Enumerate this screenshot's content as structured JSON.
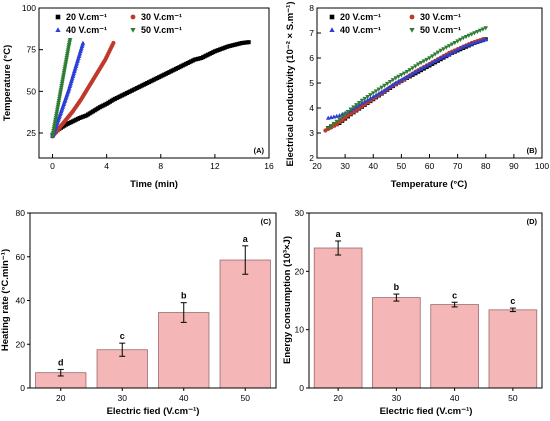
{
  "chart_data": [
    {
      "id": "A",
      "type": "scatter",
      "panel_label": "(A)",
      "xlabel": "Time (min)",
      "ylabel": "Temperature (°C)",
      "xlim": [
        -1,
        16
      ],
      "ylim": [
        10,
        100
      ],
      "xticks": [
        "0",
        "4",
        "8",
        "12",
        "16"
      ],
      "yticks": [
        "25",
        "50",
        "75",
        "100"
      ],
      "legend_position": "top-left",
      "series": [
        {
          "name": "20 V.cm⁻¹",
          "marker": "square",
          "color": "#000000",
          "x": [
            0,
            0.5,
            1,
            1.5,
            2,
            2.5,
            3,
            3.5,
            4,
            4.5,
            5,
            5.5,
            6,
            6.5,
            7,
            7.5,
            8,
            8.5,
            9,
            9.5,
            10,
            10.5,
            11,
            11.5,
            12,
            12.5,
            13,
            13.5,
            14,
            14.5
          ],
          "y": [
            24,
            27.5,
            30,
            32,
            34,
            35.5,
            38,
            40.5,
            42.5,
            45,
            47,
            49,
            51,
            53,
            55,
            57,
            59,
            61,
            63,
            65,
            67,
            69,
            70,
            72,
            74,
            75.5,
            77,
            78,
            79,
            79.5
          ]
        },
        {
          "name": "30 V.cm⁻¹",
          "marker": "circle",
          "color": "#c0392b",
          "x": [
            0,
            0.3,
            0.6,
            0.9,
            1.2,
            1.5,
            1.8,
            2.1,
            2.4,
            2.7,
            3.0,
            3.3,
            3.6,
            3.9,
            4.2,
            4.5
          ],
          "y": [
            23,
            26,
            29,
            32,
            35,
            38,
            41.5,
            45,
            49,
            53,
            57,
            61,
            65,
            69,
            74,
            79
          ]
        },
        {
          "name": "40 V.cm⁻¹",
          "marker": "triangle-up",
          "color": "#2a3fd6",
          "x": [
            0,
            0.15,
            0.3,
            0.45,
            0.6,
            0.75,
            0.9,
            1.05,
            1.2,
            1.35,
            1.5,
            1.65,
            1.8,
            1.95,
            2.1,
            2.25
          ],
          "y": [
            23,
            26.5,
            30,
            33.5,
            37,
            40.5,
            44,
            47.5,
            51,
            55,
            59,
            63,
            67,
            71,
            75,
            79
          ]
        },
        {
          "name": "50 V.cm⁻¹",
          "marker": "triangle-down",
          "color": "#2e7d32",
          "x": [
            0,
            0.1,
            0.2,
            0.3,
            0.4,
            0.5,
            0.6,
            0.7,
            0.8,
            0.9,
            1.0,
            1.1,
            1.2,
            1.3
          ],
          "y": [
            23,
            27.5,
            32,
            36.5,
            41,
            45.5,
            50,
            54.5,
            59,
            63.5,
            68,
            72.5,
            77,
            81
          ]
        }
      ]
    },
    {
      "id": "B",
      "type": "scatter",
      "panel_label": "(B)",
      "xlabel": "Temperature (°C)",
      "ylabel": "Electrical conductivity (10⁻² × S.m⁻¹)",
      "xlim": [
        20,
        100
      ],
      "ylim": [
        2,
        8
      ],
      "xticks": [
        "20",
        "30",
        "40",
        "50",
        "60",
        "70",
        "80",
        "90",
        "100"
      ],
      "yticks": [
        "2",
        "3",
        "4",
        "5",
        "6",
        "7",
        "8"
      ],
      "legend_position": "top",
      "series": [
        {
          "name": "20 V.cm⁻¹",
          "marker": "square",
          "color": "#000000",
          "x": [
            24,
            28,
            32,
            36,
            40,
            44,
            48,
            52,
            56,
            60,
            64,
            68,
            72,
            76,
            80
          ],
          "y": [
            3.2,
            3.4,
            3.75,
            4.05,
            4.35,
            4.65,
            4.95,
            5.2,
            5.45,
            5.7,
            5.95,
            6.2,
            6.4,
            6.6,
            6.75
          ]
        },
        {
          "name": "30 V.cm⁻¹",
          "marker": "circle",
          "color": "#c0392b",
          "x": [
            23,
            27,
            31,
            35,
            39,
            43,
            47,
            51,
            55,
            59,
            63,
            67,
            71,
            75,
            79
          ],
          "y": [
            3.1,
            3.35,
            3.7,
            4.0,
            4.3,
            4.6,
            4.9,
            5.15,
            5.45,
            5.7,
            5.95,
            6.2,
            6.4,
            6.6,
            6.75
          ]
        },
        {
          "name": "40 V.cm⁻¹",
          "marker": "triangle-up",
          "color": "#2a3fd6",
          "x": [
            24,
            28,
            32,
            36,
            40,
            44,
            48,
            52,
            56,
            60,
            64,
            68,
            72,
            76,
            80
          ],
          "y": [
            3.6,
            3.7,
            3.9,
            4.2,
            4.45,
            4.7,
            5.0,
            5.25,
            5.5,
            5.75,
            6.0,
            6.2,
            6.45,
            6.6,
            6.75
          ]
        },
        {
          "name": "50 V.cm⁻¹",
          "marker": "triangle-down",
          "color": "#2e7d32",
          "x": [
            24,
            28,
            32,
            36,
            40,
            44,
            48,
            52,
            56,
            60,
            64,
            68,
            72,
            76,
            80
          ],
          "y": [
            3.2,
            3.55,
            3.95,
            4.3,
            4.6,
            4.9,
            5.2,
            5.45,
            5.75,
            6.0,
            6.3,
            6.55,
            6.8,
            7.0,
            7.2
          ]
        }
      ]
    },
    {
      "id": "C",
      "type": "bar",
      "panel_label": "(C)",
      "xlabel": "Electric fied (V.cm⁻¹)",
      "ylabel": "Heating rate (°C.min⁻¹)",
      "categories": [
        "20",
        "30",
        "40",
        "50"
      ],
      "values": [
        7,
        17.5,
        34.5,
        58.5
      ],
      "errors": [
        1.5,
        3,
        4.5,
        6.5
      ],
      "significance": [
        "d",
        "c",
        "b",
        "a"
      ],
      "ylim": [
        0,
        80
      ],
      "yticks": [
        "0",
        "20",
        "40",
        "60",
        "80"
      ],
      "bar_color": "#f4b6b6"
    },
    {
      "id": "D",
      "type": "bar",
      "panel_label": "(D)",
      "xlabel": "Electric fied (V.cm⁻¹)",
      "ylabel": "Energy consumption (10³×J)",
      "categories": [
        "20",
        "30",
        "40",
        "50"
      ],
      "values": [
        24,
        15.5,
        14.3,
        13.4
      ],
      "errors": [
        1.2,
        0.6,
        0.4,
        0.3
      ],
      "significance": [
        "a",
        "b",
        "c",
        "c"
      ],
      "ylim": [
        0,
        30
      ],
      "yticks": [
        "0",
        "10",
        "20",
        "30"
      ],
      "bar_color": "#f4b6b6"
    }
  ]
}
